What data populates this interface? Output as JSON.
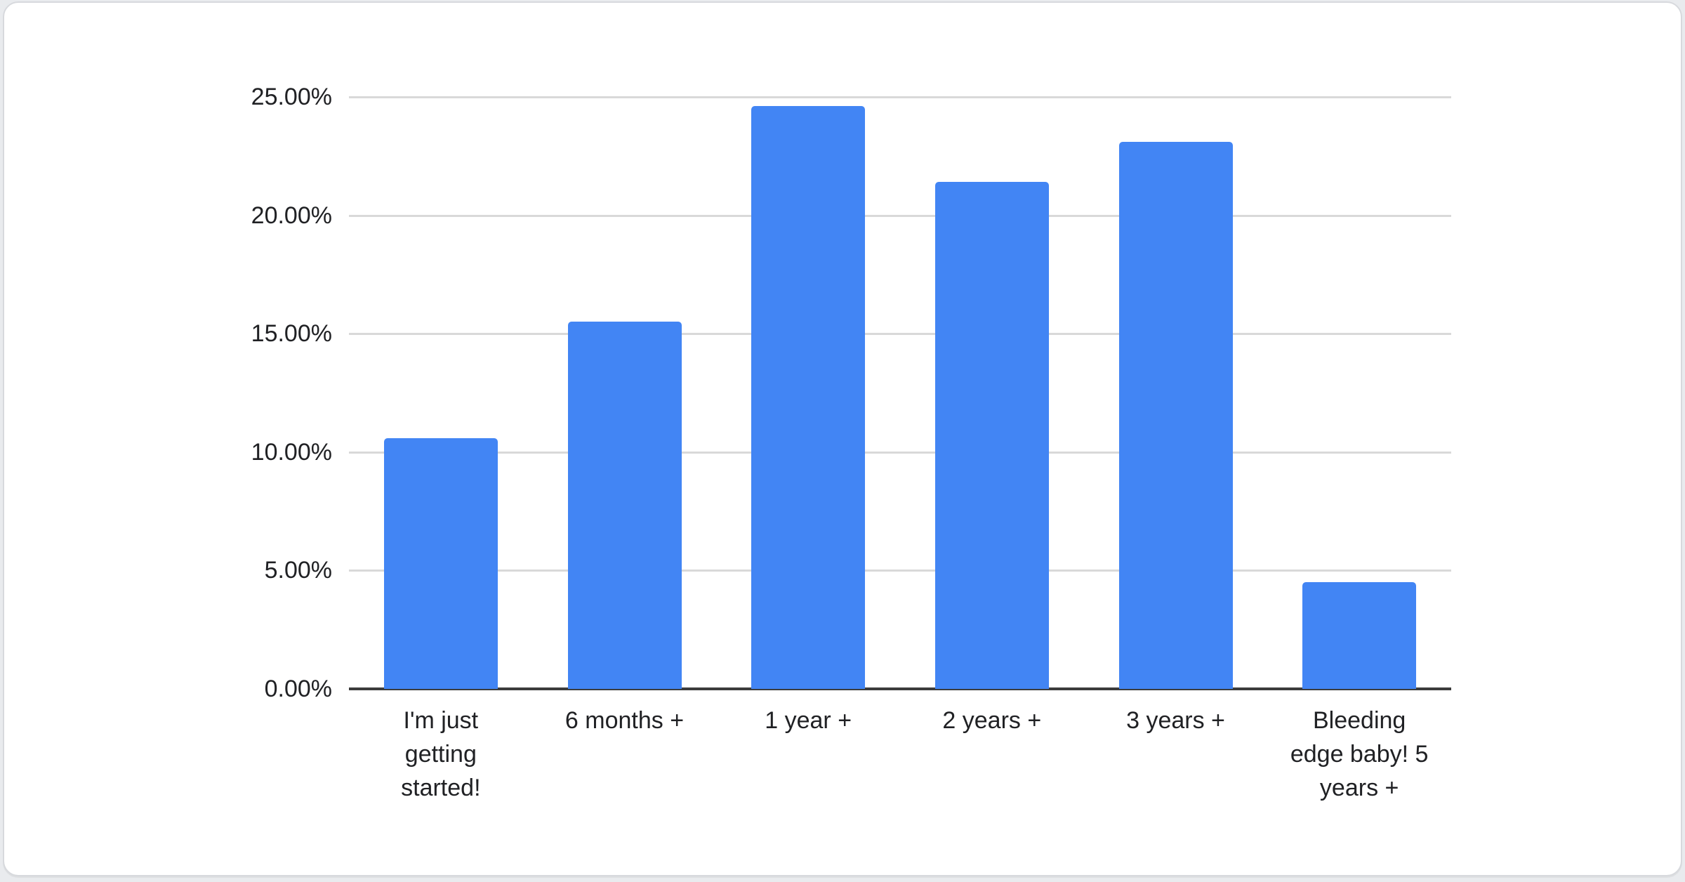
{
  "page": {
    "background_color": "#e9ebee",
    "card_background_color": "#ffffff",
    "card_border_color": "#d7d9dd"
  },
  "chart_data": {
    "type": "bar",
    "title": "",
    "categories": [
      "I'm just getting started!",
      "6 months +",
      "1 year +",
      "2 years +",
      "3 years +",
      "Bleeding edge baby! 5 years +"
    ],
    "values": [
      10.6,
      15.5,
      24.6,
      21.4,
      23.1,
      4.5
    ],
    "value_unit": "percent",
    "xlabel": "",
    "ylabel": "",
    "ylim": [
      0,
      25
    ],
    "y_ticks": [
      {
        "value": 0,
        "label": "0.00%"
      },
      {
        "value": 5,
        "label": "5.00%"
      },
      {
        "value": 10,
        "label": "10.00%"
      },
      {
        "value": 15,
        "label": "15.00%"
      },
      {
        "value": 20,
        "label": "20.00%"
      },
      {
        "value": 25,
        "label": "25.00%"
      }
    ],
    "grid": true,
    "legend_position": "none",
    "bar_color": "#4285f4",
    "gridline_color": "#d9d9d9",
    "axis_line_color": "#3c3c3c",
    "label_color": "#202124"
  }
}
